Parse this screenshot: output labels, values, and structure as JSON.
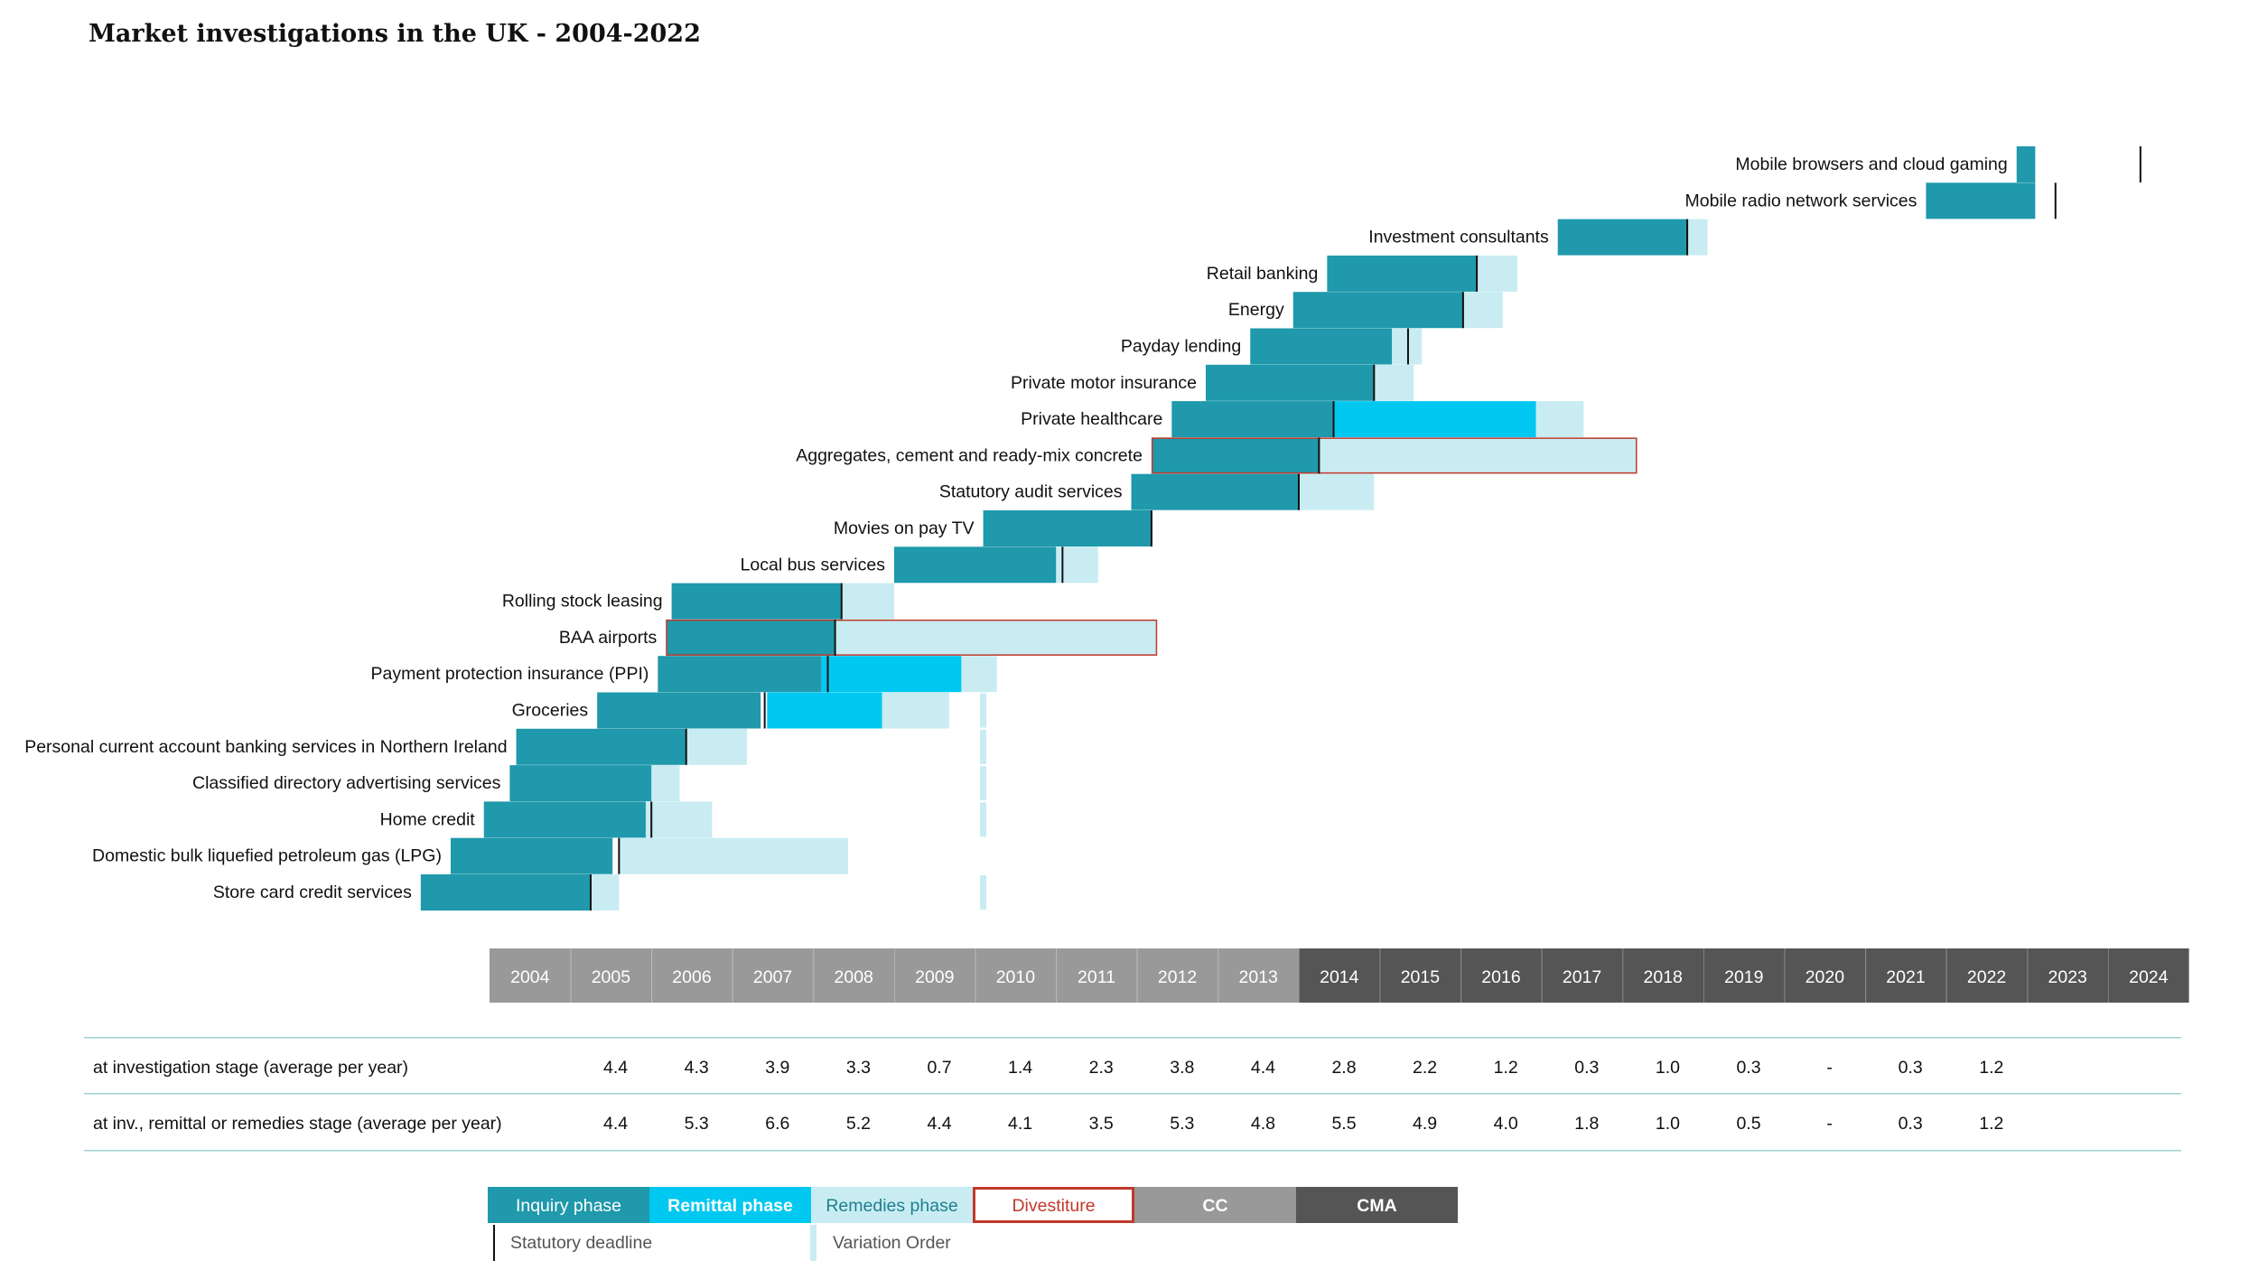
{
  "colors": {
    "inquiry": "#1f99ab",
    "remittal": "#00c8f0",
    "remedies": "#c8ecf2",
    "divestiture": "#c0392b",
    "cc": "#999999",
    "cma": "#555555",
    "deadline": "#111111",
    "variation": "#c8ecf2",
    "rule": "#9fcfd6"
  },
  "chart_data": {
    "type": "gantt",
    "title": "Market investigations in the UK - 2004-2022",
    "years": [
      "2004",
      "2005",
      "2006",
      "2007",
      "2008",
      "2009",
      "2010",
      "2011",
      "2012",
      "2013",
      "2014",
      "2015",
      "2016",
      "2017",
      "2018",
      "2019",
      "2020",
      "2021",
      "2022",
      "2023",
      "2024"
    ],
    "cc_years": [
      "2004",
      "2005",
      "2006",
      "2007",
      "2008",
      "2009",
      "2010",
      "2011",
      "2012",
      "2013"
    ],
    "cma_years": [
      "2014",
      "2015",
      "2016",
      "2017",
      "2018",
      "2019",
      "2020",
      "2021",
      "2022",
      "2023",
      "2024"
    ],
    "investigations": [
      {
        "name": "Mobile browsers and cloud gaming",
        "inquiry": [
          2022.87,
          2023.1
        ],
        "deadline": 2024.4
      },
      {
        "name": "Mobile radio network services",
        "inquiry": [
          2021.75,
          2023.1
        ],
        "deadline": 2023.35
      },
      {
        "name": "Investment consultants",
        "inquiry": [
          2017.2,
          2018.8
        ],
        "deadline": 2018.8,
        "remedies": [
          2018.8,
          2019.05
        ]
      },
      {
        "name": "Retail banking",
        "inquiry": [
          2014.35,
          2016.2
        ],
        "deadline": 2016.2,
        "remedies": [
          2016.2,
          2016.7
        ]
      },
      {
        "name": "Energy",
        "inquiry": [
          2013.93,
          2016.03
        ],
        "deadline": 2016.03,
        "remedies": [
          2016.03,
          2016.52
        ]
      },
      {
        "name": "Payday lending",
        "inquiry": [
          2013.4,
          2015.15
        ],
        "deadline": 2015.35,
        "remedies": [
          2015.15,
          2015.52
        ]
      },
      {
        "name": "Private motor insurance",
        "inquiry": [
          2012.85,
          2014.93
        ],
        "deadline": 2014.93,
        "remedies": [
          2014.93,
          2015.42
        ]
      },
      {
        "name": "Private healthcare",
        "inquiry": [
          2012.43,
          2014.43
        ],
        "deadline": 2014.43,
        "remittal": [
          2014.43,
          2016.93
        ],
        "remedies": [
          2016.93,
          2017.52
        ]
      },
      {
        "name": "Aggregates, cement and ready-mix concrete",
        "inquiry": [
          2012.18,
          2014.25
        ],
        "deadline": 2014.25,
        "remedies": [
          2014.25,
          2018.18
        ],
        "divestiture": [
          2012.18,
          2018.18
        ]
      },
      {
        "name": "Statutory audit services",
        "inquiry": [
          2011.93,
          2014.0
        ],
        "deadline": 2014.0,
        "remedies": [
          2014.0,
          2014.93
        ]
      },
      {
        "name": "Movies on pay TV",
        "inquiry": [
          2010.1,
          2012.18
        ],
        "deadline": 2012.18
      },
      {
        "name": "Local bus services",
        "inquiry": [
          2009.0,
          2011.0
        ],
        "deadline": 2011.08,
        "remedies": [
          2011.0,
          2011.52
        ]
      },
      {
        "name": "Rolling stock leasing",
        "inquiry": [
          2006.25,
          2008.35
        ],
        "deadline": 2008.35,
        "remedies": [
          2008.35,
          2009.0
        ]
      },
      {
        "name": "BAA airports",
        "inquiry": [
          2006.18,
          2008.27
        ],
        "deadline": 2008.27,
        "remedies": [
          2008.27,
          2012.25
        ],
        "divestiture": [
          2006.18,
          2012.25
        ]
      },
      {
        "name": "Payment protection insurance (PPI)",
        "inquiry": [
          2006.08,
          2008.1
        ],
        "deadline": 2008.18,
        "remittal": [
          2008.1,
          2009.83
        ],
        "remedies": [
          2009.83,
          2010.27
        ]
      },
      {
        "name": "Groceries",
        "inquiry": [
          2005.33,
          2007.35
        ],
        "deadline": 2007.4,
        "remittal": [
          2007.43,
          2008.85
        ],
        "remedies": [
          2008.85,
          2009.68
        ],
        "variation": 2010.1
      },
      {
        "name": "Personal current account banking services in Northern Ireland",
        "inquiry": [
          2004.33,
          2006.43
        ],
        "deadline": 2006.43,
        "remedies": [
          2006.43,
          2007.18
        ],
        "variation": 2010.1
      },
      {
        "name": "Classified directory advertising services",
        "inquiry": [
          2004.25,
          2006.0
        ],
        "remedies": [
          2006.0,
          2006.35
        ],
        "variation": 2010.1
      },
      {
        "name": "Home credit",
        "inquiry": [
          2003.93,
          2005.93
        ],
        "deadline": 2006.0,
        "remedies": [
          2005.93,
          2006.75
        ],
        "variation": 2010.1
      },
      {
        "name": "Domestic bulk liquefied petroleum gas (LPG)",
        "inquiry": [
          2003.52,
          2005.52
        ],
        "deadline": 2005.6,
        "remedies": [
          2005.6,
          2008.43
        ]
      },
      {
        "name": "Store card credit services",
        "inquiry": [
          2003.15,
          2005.25
        ],
        "deadline": 2005.25,
        "remedies": [
          2005.25,
          2005.6
        ],
        "variation": 2010.1
      }
    ],
    "stats": {
      "years": [
        "2005",
        "2006",
        "2007",
        "2008",
        "2009",
        "2010",
        "2011",
        "2012",
        "2013",
        "2014",
        "2015",
        "2016",
        "2017",
        "2018",
        "2019",
        "2020",
        "2021",
        "2022"
      ],
      "rows": [
        {
          "label": "at investigation stage (average per year)",
          "values": [
            "4.4",
            "4.3",
            "3.9",
            "3.3",
            "0.7",
            "1.4",
            "2.3",
            "3.8",
            "4.4",
            "2.8",
            "2.2",
            "1.2",
            "0.3",
            "1.0",
            "0.3",
            "-",
            "0.3",
            "1.2"
          ]
        },
        {
          "label": "at inv., remittal or remedies stage (average per year)",
          "values": [
            "4.4",
            "5.3",
            "6.6",
            "5.2",
            "4.4",
            "4.1",
            "3.5",
            "5.3",
            "4.8",
            "5.5",
            "4.9",
            "4.0",
            "1.8",
            "1.0",
            "0.5",
            "-",
            "0.3",
            "1.2"
          ]
        }
      ]
    },
    "legend": {
      "inquiry": "Inquiry phase",
      "remittal": "Remittal phase",
      "remedies": "Remedies phase",
      "divestiture": "Divestiture",
      "cc": "CC",
      "cma": "CMA",
      "deadline": "Statutory deadline",
      "variation": "Variation Order"
    }
  }
}
